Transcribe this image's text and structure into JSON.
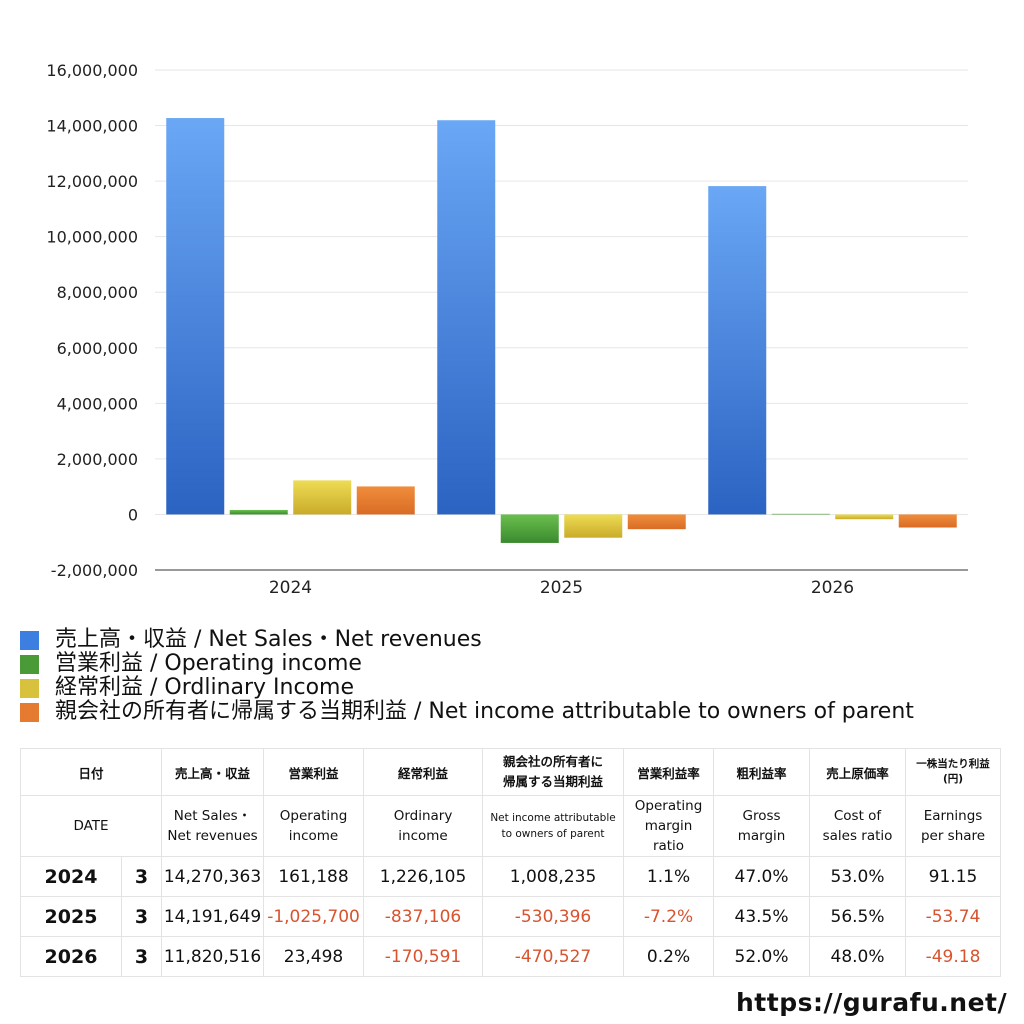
{
  "chart_data": {
    "type": "bar",
    "categories": [
      "2024",
      "2025",
      "2026"
    ],
    "ylim": [
      -2000000,
      16000000
    ],
    "yticks": [
      16000000,
      14000000,
      12000000,
      10000000,
      8000000,
      6000000,
      4000000,
      2000000,
      0,
      -2000000
    ],
    "ytick_labels": [
      "16,000,000",
      "14,000,000",
      "12,000,000",
      "10,000,000",
      "8,000,000",
      "6,000,000",
      "4,000,000",
      "2,000,000",
      "0",
      "-2,000,000"
    ],
    "grid": true,
    "legend_position": "bottom",
    "series": [
      {
        "name": "売上高・収益 / Net Sales・Net revenues",
        "color_top": "#6aa7f5",
        "color_bottom": "#2b63c2",
        "values": [
          14270363,
          14191649,
          11820516
        ]
      },
      {
        "name": "営業利益 / Operating income",
        "color_top": "#6bbf4f",
        "color_bottom": "#3a8a2e",
        "values": [
          161188,
          -1025700,
          23498
        ]
      },
      {
        "name": "経常利益 / Ordlinary Income",
        "color_top": "#eedc54",
        "color_bottom": "#c9ab2a",
        "values": [
          1226105,
          -837106,
          -170591
        ]
      },
      {
        "name": "親会社の所有者に帰属する当期利益 / Net income attributable to owners of parent",
        "color_top": "#f08d3c",
        "color_bottom": "#d96c25",
        "values": [
          1008235,
          -530396,
          -470527
        ]
      }
    ]
  },
  "legend": [
    {
      "label": "売上高・収益 / Net Sales・Net revenues",
      "color": "#3d7fe0"
    },
    {
      "label": "営業利益 / Operating income",
      "color": "#4a9a37"
    },
    {
      "label": "経常利益 / Ordlinary Income",
      "color": "#d8c23d"
    },
    {
      "label": "親会社の所有者に帰属する当期利益 / Net income attributable to owners of parent",
      "color": "#e57b30"
    }
  ],
  "table": {
    "header_jp": {
      "date": "日付",
      "sales": "売上高・収益",
      "op": "営業利益",
      "ord": "経常利益",
      "net_line1": "親会社の所有者に",
      "net_line2": "帰属する当期利益",
      "op_margin": "営業利益率",
      "gross": "粗利益率",
      "cost": "売上原価率",
      "eps_line1": "一株当たり利益",
      "eps_line2": "(円)"
    },
    "header_en": {
      "date": "DATE",
      "sales_line1": "Net Sales・",
      "sales_line2": "Net revenues",
      "op_line1": "Operating",
      "op_line2": "income",
      "ord_line1": "Ordinary",
      "ord_line2": "income",
      "net_line1": "Net income attributable",
      "net_line2": "to owners of parent",
      "op_margin_line1": "Operating",
      "op_margin_line2": "margin",
      "op_margin_line3": "ratio",
      "gross_line1": "Gross",
      "gross_line2": "margin",
      "cost_line1": "Cost of",
      "cost_line2": "sales ratio",
      "eps_line1": "Earnings",
      "eps_line2": "per share"
    },
    "rows": [
      {
        "year": "2024",
        "month": "3",
        "sales": "14,270,363",
        "op": "161,188",
        "ord": "1,226,105",
        "net": "1,008,235",
        "op_margin": "1.1%",
        "gross": "47.0%",
        "cost": "53.0%",
        "eps": "91.15"
      },
      {
        "year": "2025",
        "month": "3",
        "sales": "14,191,649",
        "op": "-1,025,700",
        "ord": "-837,106",
        "net": "-530,396",
        "op_margin": "-7.2%",
        "gross": "43.5%",
        "cost": "56.5%",
        "eps": "-53.74"
      },
      {
        "year": "2026",
        "month": "3",
        "sales": "11,820,516",
        "op": "23,498",
        "ord": "-170,591",
        "net": "-470,527",
        "op_margin": "0.2%",
        "gross": "52.0%",
        "cost": "48.0%",
        "eps": "-49.18"
      }
    ]
  },
  "footer": {
    "url": "https://gurafu.net/"
  }
}
